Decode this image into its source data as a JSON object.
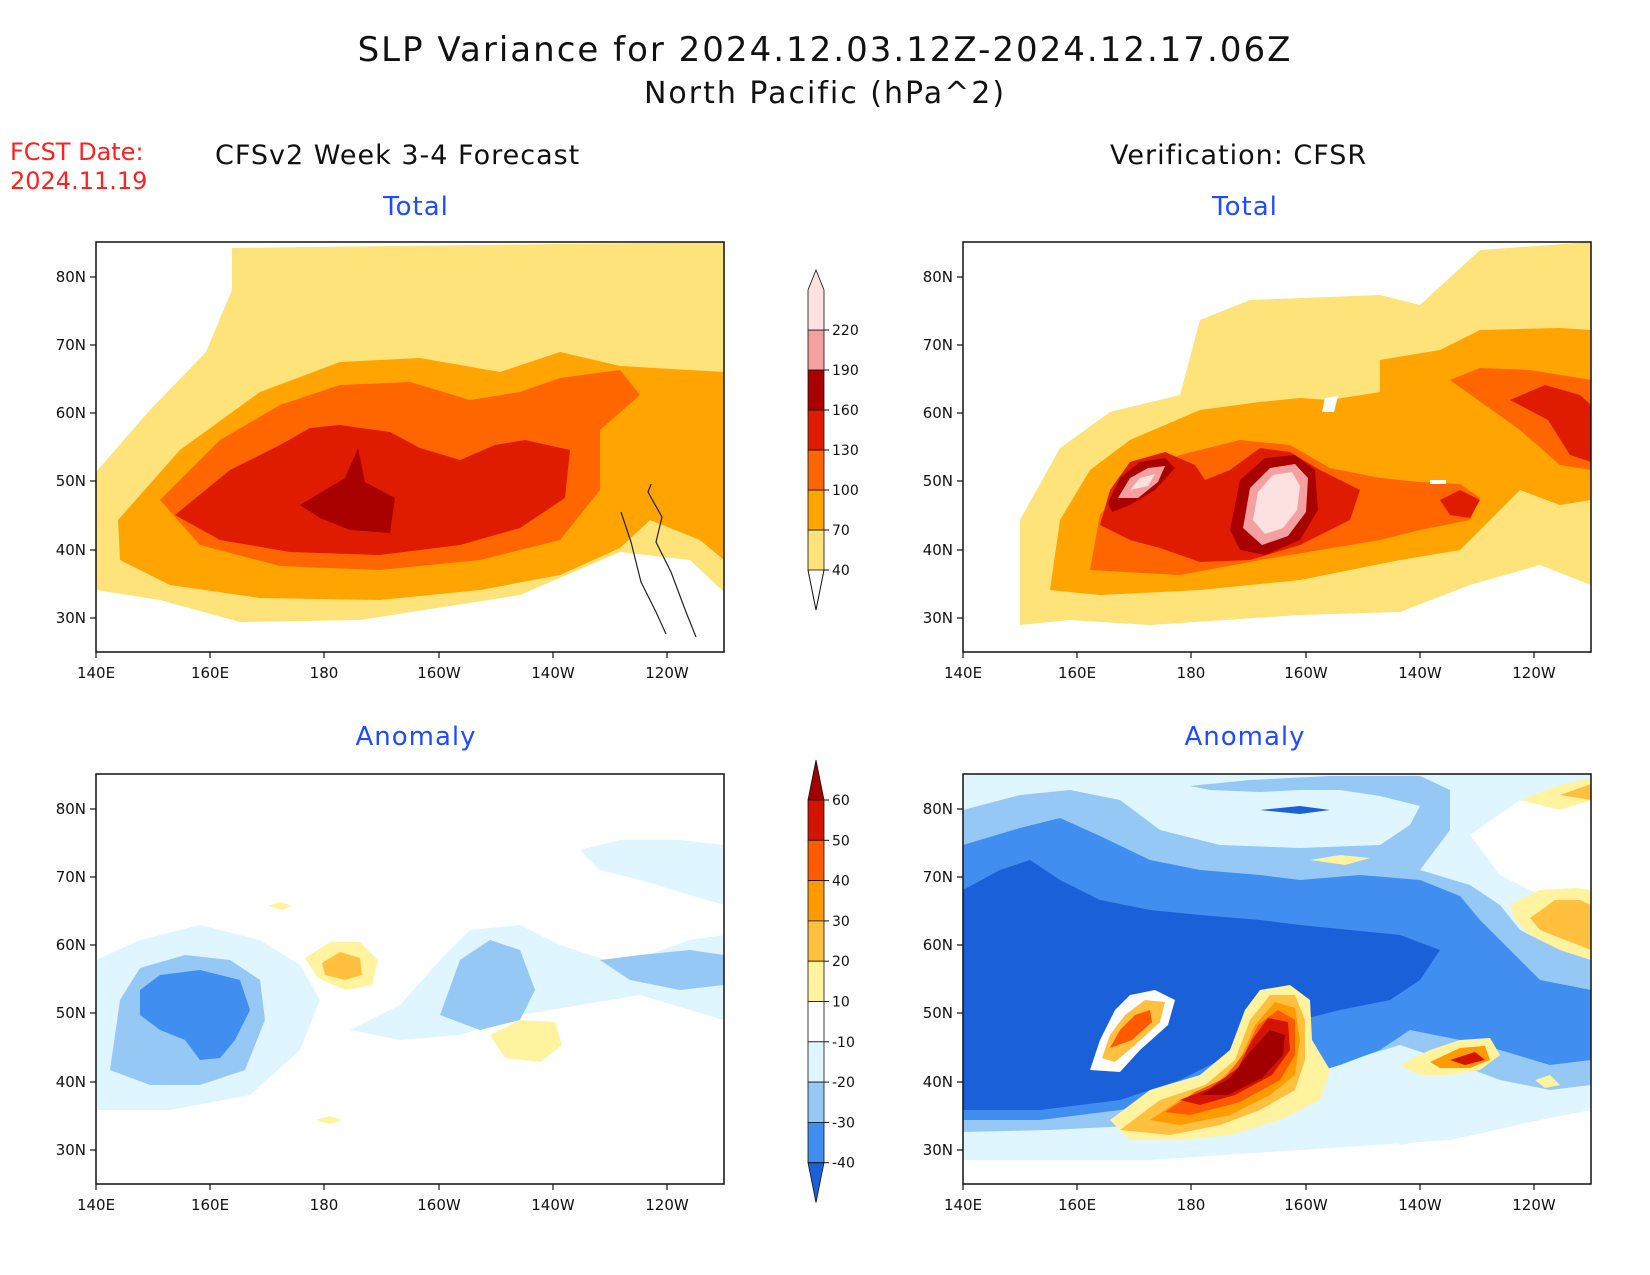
{
  "title": {
    "line1": "SLP Variance for 2024.12.03.12Z-2024.12.17.06Z",
    "line2": "North Pacific (hPa^2)"
  },
  "fcst_date": "FCST Date:\n2024.11.19",
  "columns": {
    "left": "CFSv2 Week 3-4 Forecast",
    "right": "Verification: CFSR"
  },
  "panels": {
    "forecast_total": {
      "title": "Total"
    },
    "verif_total": {
      "title": "Total"
    },
    "forecast_anomaly": {
      "title": "Anomaly"
    },
    "verif_anomaly": {
      "title": "Anomaly"
    }
  },
  "axes": {
    "lat_labels": [
      "80N",
      "70N",
      "60N",
      "50N",
      "40N",
      "30N"
    ],
    "lon_labels": [
      "140E",
      "160E",
      "180",
      "160W",
      "140W",
      "120W"
    ]
  },
  "colorbars": {
    "total": {
      "levels": [
        "40",
        "70",
        "100",
        "130",
        "160",
        "190",
        "220"
      ],
      "colors": [
        "#fde37a",
        "#ffa400",
        "#ff6600",
        "#e01c00",
        "#a90000",
        "#f4a0a0",
        "#fde0e0"
      ]
    },
    "anomaly": {
      "levels": [
        "-40",
        "-30",
        "-20",
        "-10",
        "10",
        "20",
        "30",
        "40",
        "50",
        "60"
      ],
      "colors": [
        "#1a60d8",
        "#3f8ef0",
        "#96c8f5",
        "#dff5ff",
        "#ffffff",
        "#fff3a0",
        "#ffc040",
        "#ff9a00",
        "#ff5a00",
        "#d21400",
        "#a00000"
      ]
    }
  }
}
